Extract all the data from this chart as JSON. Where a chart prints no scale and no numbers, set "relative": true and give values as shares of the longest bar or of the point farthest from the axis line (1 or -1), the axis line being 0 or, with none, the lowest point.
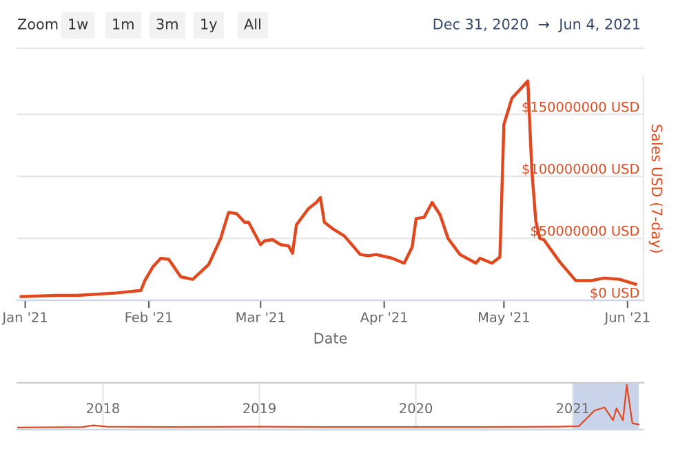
{
  "chart_data": [
    {
      "type": "line",
      "xlabel": "Date",
      "ylabel": "Sales USD (7-day)",
      "x": [
        "2020-12-31",
        "2021-01-09",
        "2021-01-14",
        "2021-01-24",
        "2021-01-30",
        "2021-01-31",
        "2021-02-02",
        "2021-02-04",
        "2021-02-06",
        "2021-02-09",
        "2021-02-12",
        "2021-02-16",
        "2021-02-19",
        "2021-02-21",
        "2021-02-23",
        "2021-02-25",
        "2021-02-26",
        "2021-03-01",
        "2021-03-02",
        "2021-03-04",
        "2021-03-06",
        "2021-03-08",
        "2021-03-09",
        "2021-03-10",
        "2021-03-13",
        "2021-03-15",
        "2021-03-16",
        "2021-03-17",
        "2021-03-19",
        "2021-03-22",
        "2021-03-26",
        "2021-03-28",
        "2021-03-30",
        "2021-04-03",
        "2021-04-06",
        "2021-04-08",
        "2021-04-09",
        "2021-04-11",
        "2021-04-13",
        "2021-04-15",
        "2021-04-17",
        "2021-04-20",
        "2021-04-24",
        "2021-04-25",
        "2021-04-28",
        "2021-04-30",
        "2021-05-01",
        "2021-05-03",
        "2021-05-05",
        "2021-05-07",
        "2021-05-08",
        "2021-05-09",
        "2021-05-10",
        "2021-05-11",
        "2021-05-15",
        "2021-05-19",
        "2021-05-23",
        "2021-05-26",
        "2021-05-30",
        "2021-06-03"
      ],
      "series": [
        {
          "color": "#e0491f",
          "values": [
            3000000,
            4000000,
            4000000,
            6000000,
            8000000,
            16000000,
            27000000,
            34000000,
            33000000,
            19000000,
            17000000,
            29000000,
            50000000,
            71000000,
            70000000,
            63000000,
            63000000,
            45000000,
            48000000,
            49000000,
            45000000,
            44000000,
            38000000,
            61000000,
            74000000,
            79000000,
            83000000,
            63000000,
            58000000,
            52000000,
            37000000,
            36000000,
            37000000,
            34000000,
            30000000,
            43000000,
            66000000,
            67000000,
            79000000,
            69000000,
            50000000,
            37000000,
            30000000,
            34000000,
            30000000,
            35000000,
            142000000,
            163000000,
            170000000,
            177000000,
            105000000,
            64000000,
            50000000,
            49000000,
            31000000,
            16000000,
            16000000,
            18000000,
            17000000,
            13000000
          ]
        }
      ],
      "xlim": [
        "2020-12-30",
        "2021-06-05"
      ],
      "xticks": [
        {
          "value": "2021-01-01",
          "label": "Jan '21"
        },
        {
          "value": "2021-02-01",
          "label": "Feb '21"
        },
        {
          "value": "2021-03-01",
          "label": "Mar '21"
        },
        {
          "value": "2021-04-01",
          "label": "Apr '21"
        },
        {
          "value": "2021-05-01",
          "label": "May '21"
        },
        {
          "value": "2021-06-01",
          "label": "Jun '21"
        }
      ],
      "ylim": [
        0,
        180000000
      ],
      "yticks": [
        {
          "value": 0,
          "label": "$0 USD"
        },
        {
          "value": 50000000,
          "label": "$50000000 USD"
        },
        {
          "value": 100000000,
          "label": "$100000000 USD"
        },
        {
          "value": 150000000,
          "label": "$150000000 USD"
        }
      ],
      "grid": "y",
      "legend": false,
      "annotations": [
        "Zoom",
        "1w",
        "1m",
        "3m",
        "1y",
        "All",
        "Dec 31, 2020  →  Jun 4, 2021"
      ]
    },
    {
      "type": "line",
      "relative": true,
      "x": [
        "2017-06-15",
        "2017-11-15",
        "2017-12-10",
        "2018-01-10",
        "2018-06-01",
        "2019-01-01",
        "2019-06-01",
        "2020-01-01",
        "2020-06-01",
        "2020-12-01",
        "2021-01-15",
        "2021-02-21",
        "2021-03-16",
        "2021-04-05",
        "2021-04-13",
        "2021-04-28",
        "2021-05-07",
        "2021-05-20",
        "2021-06-04"
      ],
      "series": [
        {
          "color": "#e0491f",
          "values": [
            0,
            0.01,
            0.05,
            0.02,
            0.01,
            0.02,
            0.01,
            0.01,
            0.01,
            0.02,
            0.03,
            0.4,
            0.47,
            0.17,
            0.45,
            0.17,
            1,
            0.1,
            0.07
          ]
        }
      ],
      "xlim": [
        "2017-06-15",
        "2021-06-15"
      ],
      "xticks": [
        {
          "value": "2018-01-01",
          "label": "2018"
        },
        {
          "value": "2019-01-01",
          "label": "2019"
        },
        {
          "value": "2020-01-01",
          "label": "2020"
        },
        {
          "value": "2021-01-01",
          "label": "2021"
        }
      ],
      "grid": "x",
      "tick_labels": "x",
      "bands": [
        {
          "axis": "x",
          "from": "2020-12-31",
          "to": "2021-06-04",
          "color": "#c9d3ea"
        }
      ]
    }
  ]
}
